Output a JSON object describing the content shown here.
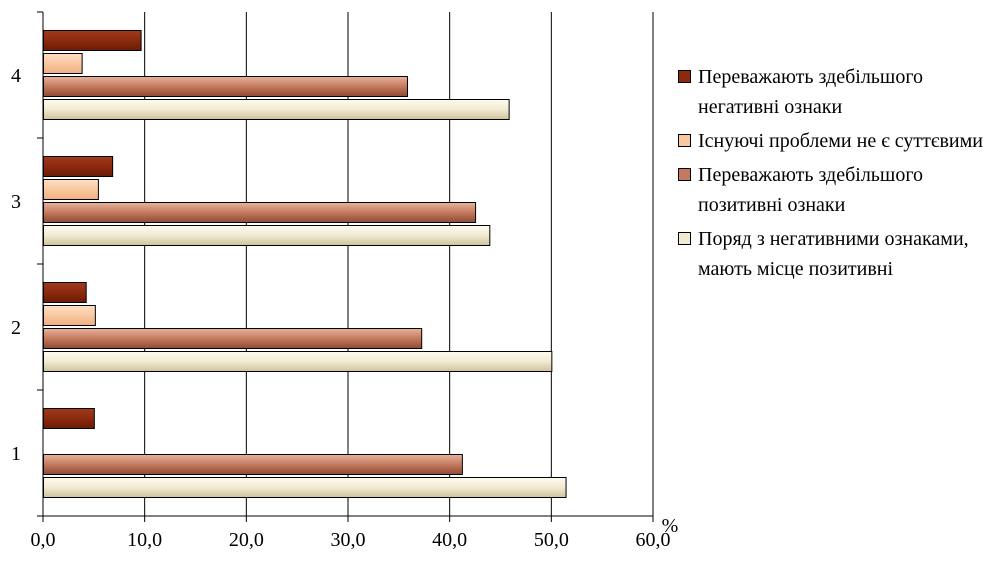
{
  "chart_data": {
    "type": "bar",
    "orientation": "horizontal",
    "categories": [
      "1",
      "2",
      "3",
      "4"
    ],
    "xlim": [
      0,
      60
    ],
    "xticks": [
      "0,0",
      "10,0",
      "20,0",
      "30,0",
      "40,0",
      "50,0",
      "60,0"
    ],
    "x_unit": "%",
    "grid": "vertical",
    "legend_position": "right",
    "series": [
      {
        "name": "Переважають здебільшого негативні ознаки",
        "color": "#8b2a0e",
        "values": [
          5.0,
          4.2,
          6.8,
          9.6
        ]
      },
      {
        "name": "Існуючі проблеми не є суттєвими",
        "color": "#f9c7a0",
        "values": [
          0,
          5.1,
          5.4,
          3.8
        ]
      },
      {
        "name": "Переважають здебільшого позитивні ознаки",
        "color": "#c47a5e",
        "values": [
          41.2,
          37.2,
          42.5,
          35.8
        ]
      },
      {
        "name": "Поряд з негативними ознаками, мають місце позитивні",
        "color": "#f1ead3",
        "values": [
          51.4,
          50.0,
          43.9,
          45.8
        ]
      }
    ]
  }
}
